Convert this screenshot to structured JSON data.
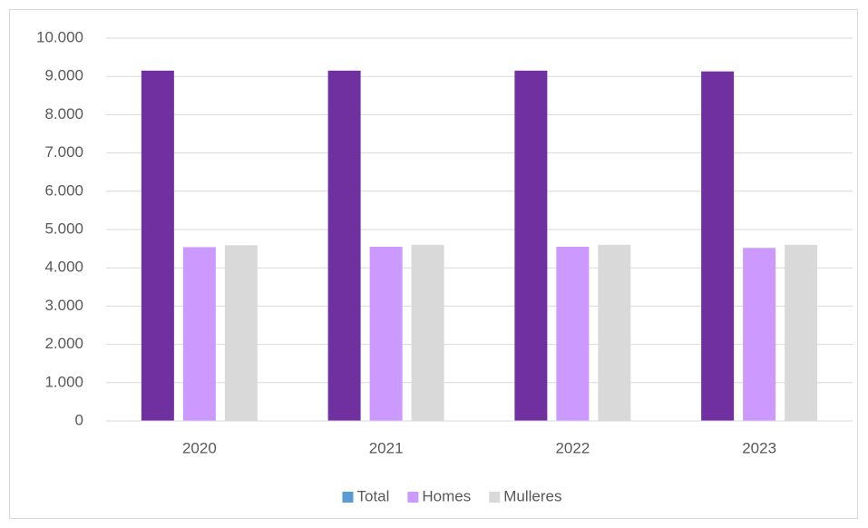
{
  "chart_data": {
    "type": "bar",
    "categories": [
      "2020",
      "2021",
      "2022",
      "2023"
    ],
    "series": [
      {
        "name": "Total",
        "color": "#7030a0",
        "legend_color": "#5b9bd5",
        "values": [
          9150,
          9150,
          9150,
          9130
        ]
      },
      {
        "name": "Homes",
        "color": "#cc99ff",
        "values": [
          4540,
          4550,
          4550,
          4520
        ]
      },
      {
        "name": "Mulleres",
        "color": "#d9d9d9",
        "values": [
          4590,
          4600,
          4600,
          4600
        ]
      }
    ],
    "ylim": [
      0,
      10000
    ],
    "yticks": [
      0,
      {
        "value": 1000,
        "label": "1.000"
      },
      {
        "value": 2000,
        "label": "2.000"
      },
      {
        "value": 3000,
        "label": "3.000"
      },
      {
        "value": 4000,
        "label": "4.000"
      },
      {
        "value": 5000,
        "label": "5.000"
      },
      {
        "value": 6000,
        "label": "6.000"
      },
      {
        "value": 7000,
        "label": "7.000"
      },
      {
        "value": 8000,
        "label": "8.000"
      },
      {
        "value": 9000,
        "label": "9.000"
      },
      {
        "value": 10000,
        "label": "10.000"
      }
    ],
    "grid": true,
    "legend": "bottom"
  }
}
